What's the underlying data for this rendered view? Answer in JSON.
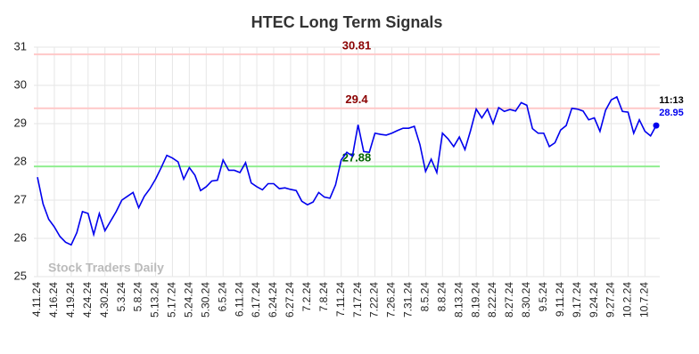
{
  "chart_data": {
    "type": "line",
    "title": "HTEC Long Term Signals",
    "categories": [
      "4.11.24",
      null,
      null,
      "4.16.24",
      null,
      null,
      "4.19.24",
      null,
      null,
      "4.24.24",
      null,
      null,
      "4.30.24",
      null,
      null,
      "5.3.24",
      null,
      null,
      "5.8.24",
      null,
      null,
      "5.13.24",
      null,
      null,
      "5.17.24",
      null,
      null,
      "5.24.24",
      null,
      null,
      "5.30.24",
      null,
      null,
      "6.5.24",
      null,
      null,
      "6.11.24",
      null,
      null,
      "6.17.24",
      null,
      null,
      "6.24.24",
      null,
      null,
      "6.27.24",
      null,
      null,
      "7.2.24",
      null,
      null,
      "7.8.24",
      null,
      null,
      "7.11.24",
      null,
      null,
      "7.17.24",
      null,
      null,
      "7.22.24",
      null,
      null,
      "7.26.24",
      null,
      null,
      "7.31.24",
      null,
      null,
      "8.5.24",
      null,
      null,
      "8.8.24",
      null,
      null,
      "8.13.24",
      null,
      null,
      "8.19.24",
      null,
      null,
      "8.22.24",
      null,
      null,
      "8.27.24",
      null,
      null,
      "8.30.24",
      null,
      null,
      "9.5.24",
      null,
      null,
      "9.11.24",
      null,
      null,
      "9.17.24",
      null,
      null,
      "9.24.24",
      null,
      null,
      "9.27.24",
      null,
      null,
      "10.2.24",
      null,
      null,
      "10.7.24",
      null,
      null
    ],
    "values": [
      27.6,
      26.9,
      26.5,
      26.3,
      26.05,
      25.9,
      25.83,
      26.15,
      26.7,
      26.65,
      26.1,
      26.65,
      26.2,
      26.45,
      26.7,
      27.0,
      27.1,
      27.2,
      26.8,
      27.1,
      27.3,
      27.55,
      27.85,
      28.17,
      28.1,
      28.0,
      27.55,
      27.85,
      27.65,
      27.25,
      27.35,
      27.5,
      27.52,
      28.05,
      27.78,
      27.78,
      27.72,
      27.98,
      27.45,
      27.35,
      27.27,
      27.43,
      27.43,
      27.3,
      27.32,
      27.28,
      27.25,
      26.97,
      26.88,
      26.95,
      27.2,
      27.08,
      27.05,
      27.4,
      28.05,
      28.25,
      28.15,
      28.97,
      28.27,
      28.25,
      28.75,
      28.72,
      28.7,
      28.75,
      28.82,
      28.88,
      28.88,
      28.93,
      28.45,
      27.75,
      28.07,
      27.72,
      28.75,
      28.6,
      28.4,
      28.65,
      28.32,
      28.82,
      29.38,
      29.15,
      29.38,
      29.0,
      29.42,
      29.32,
      29.37,
      29.33,
      29.55,
      29.48,
      28.87,
      28.75,
      28.75,
      28.4,
      28.5,
      28.83,
      28.95,
      29.4,
      29.38,
      29.33,
      29.1,
      29.15,
      28.8,
      29.35,
      29.62,
      29.7,
      29.32,
      29.3,
      28.75,
      29.1,
      28.8,
      28.68,
      28.95
    ],
    "color": "#0000ee",
    "ylim": [
      25,
      31
    ],
    "yticks": [
      25,
      26,
      27,
      28,
      29,
      30,
      31
    ],
    "grid": true,
    "hlines": [
      {
        "value": 30.81,
        "color": "#ffc8c8",
        "label_color": "#8b0000"
      },
      {
        "value": 29.4,
        "color": "#ffc8c8",
        "label_color": "#8b0000"
      },
      {
        "value": 27.88,
        "color": "#90ee90",
        "label_color": "#006400"
      }
    ],
    "last_time": "11:13",
    "watermark": "Stock Traders Daily"
  }
}
